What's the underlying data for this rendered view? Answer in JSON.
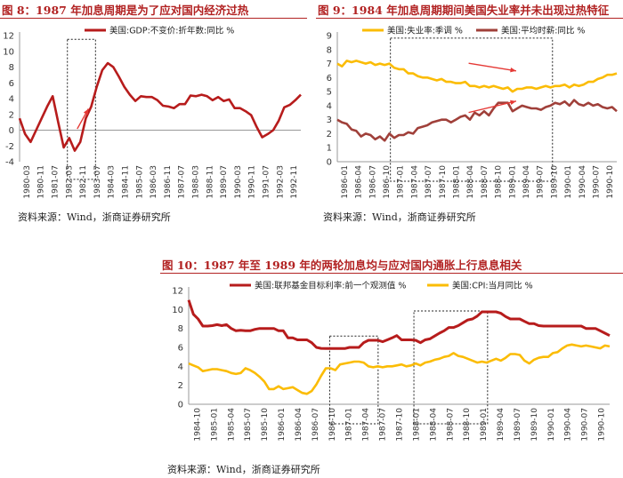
{
  "figures": [
    {
      "title": "图  8：1987 年加息周期是为了应对国内经济过热",
      "source": "资料来源：Wind，浙商证券研究所"
    },
    {
      "title": "图  9：1984 年加息周期期间美国失业率并未出现过热特征",
      "source": "资料来源：Wind，浙商证券研究所"
    },
    {
      "title": "图  10：1987 年至 1989 年的两轮加息均与应对国内通胀上行息息相关",
      "source": "资料来源：Wind，浙商证券研究所"
    }
  ],
  "colors": {
    "red": "#b71c1c",
    "yellow": "#fbbc05",
    "brown": "#a0403a",
    "arrow": "#e53935",
    "title": "#b22222"
  },
  "chart_data": [
    {
      "type": "line",
      "title": "图  8：1987 年加息周期是为了应对国内经济过热",
      "ylim": [
        -4,
        12
      ],
      "yticks": [
        -4,
        -2,
        0,
        2,
        4,
        6,
        8,
        10,
        12
      ],
      "xticks": [
        "1980-03",
        "1980-11",
        "1981-07",
        "1982-03",
        "1982-11",
        "1983-07",
        "1984-03",
        "1984-11",
        "1985-07",
        "1986-03",
        "1986-11",
        "1987-07",
        "1988-03",
        "1988-11",
        "1989-07",
        "1990-03",
        "1990-11",
        "1991-07",
        "1992-03",
        "1992-11"
      ],
      "series": [
        {
          "name": "美国:GDP:不变价:折年数:同比 %",
          "values": [
            1.5,
            -0.5,
            -1.5,
            0.0,
            1.5,
            3.0,
            4.3,
            1.0,
            -2.2,
            -1.0,
            -2.6,
            -1.5,
            1.5,
            3.0,
            5.5,
            7.6,
            8.5,
            8.0,
            6.8,
            5.5,
            4.5,
            3.7,
            4.3,
            4.2,
            4.2,
            3.8,
            3.1,
            3.0,
            2.8,
            3.3,
            3.3,
            4.4,
            4.3,
            4.5,
            4.3,
            3.8,
            4.2,
            3.7,
            3.9,
            2.8,
            2.8,
            2.4,
            1.9,
            0.4,
            -0.9,
            -0.5,
            0.0,
            1.2,
            2.9,
            3.2,
            3.8,
            4.5
          ]
        }
      ],
      "annotations": [
        "dashed box around 1982-11 to 1984-03",
        "upward arrow"
      ]
    },
    {
      "type": "line",
      "title": "图  9：1984 年加息周期期间美国失业率并未出现过热特征",
      "ylim": [
        0,
        9
      ],
      "yticks": [
        0,
        1,
        2,
        3,
        4,
        5,
        6,
        7,
        8,
        9
      ],
      "xticks": [
        "1986-01",
        "1986-04",
        "1986-07",
        "1986-10",
        "1987-01",
        "1987-04",
        "1987-07",
        "1987-10",
        "1988-01",
        "1988-04",
        "1988-07",
        "1988-10",
        "1989-01",
        "1989-04",
        "1989-07",
        "1989-10",
        "1990-01",
        "1990-04",
        "1990-07",
        "1990-10"
      ],
      "series": [
        {
          "name": "美国:失业率:季调 %",
          "values": [
            7.0,
            6.8,
            7.2,
            7.1,
            7.2,
            7.1,
            7.0,
            7.1,
            6.9,
            7.0,
            6.9,
            7.0,
            6.7,
            6.6,
            6.6,
            6.3,
            6.3,
            6.1,
            6.0,
            6.0,
            5.9,
            5.8,
            5.9,
            5.7,
            5.7,
            5.6,
            5.6,
            5.7,
            5.4,
            5.4,
            5.3,
            5.4,
            5.3,
            5.4,
            5.3,
            5.2,
            5.3,
            5.0,
            5.2,
            5.2,
            5.3,
            5.3,
            5.2,
            5.3,
            5.4,
            5.3,
            5.4,
            5.4,
            5.5,
            5.3,
            5.5,
            5.4,
            5.5,
            5.7,
            5.7,
            5.9,
            6.0,
            6.2,
            6.2,
            6.3
          ]
        },
        {
          "name": "美国:平均时薪:同比 %",
          "values": [
            3.0,
            2.8,
            2.7,
            2.3,
            2.2,
            1.8,
            2.0,
            1.9,
            1.6,
            1.8,
            1.5,
            2.0,
            1.7,
            1.9,
            1.9,
            2.1,
            2.0,
            2.4,
            2.5,
            2.6,
            2.8,
            2.9,
            3.0,
            3.0,
            2.8,
            3.0,
            3.2,
            3.3,
            3.0,
            3.5,
            3.3,
            3.6,
            3.3,
            3.8,
            4.2,
            4.2,
            4.2,
            3.6,
            3.8,
            4.0,
            3.9,
            3.8,
            3.8,
            3.7,
            3.9,
            4.0,
            4.2,
            4.1,
            4.3,
            4.0,
            4.4,
            4.1,
            4.0,
            4.2,
            4.0,
            4.1,
            3.9,
            3.8,
            3.9,
            3.6
          ]
        }
      ],
      "annotations": [
        "dashed box around 1987-03 to 1989-10",
        "two rightward arrows"
      ]
    },
    {
      "type": "line",
      "title": "图  10：1987 年至 1989 年的两轮加息均与应对国内通胀上行息息相关",
      "ylim": [
        0,
        12
      ],
      "yticks": [
        0,
        2,
        4,
        6,
        8,
        10,
        12
      ],
      "xticks": [
        "1984-10",
        "1985-01",
        "1985-04",
        "1985-07",
        "1985-10",
        "1986-01",
        "1986-04",
        "1986-07",
        "1986-10",
        "1987-01",
        "1987-04",
        "1987-07",
        "1987-10",
        "1988-01",
        "1988-04",
        "1988-07",
        "1988-10",
        "1989-01",
        "1989-04",
        "1989-07",
        "1989-10",
        "1990-01",
        "1990-04",
        "1990-07",
        "1990-10"
      ],
      "series": [
        {
          "name": "美国:联邦基金目标利率:前一个观测值 %",
          "values": [
            11.0,
            9.5,
            9.0,
            8.25,
            8.25,
            8.3,
            8.4,
            8.3,
            8.4,
            8.0,
            7.75,
            7.8,
            7.75,
            7.75,
            7.9,
            8.0,
            8.0,
            8.0,
            8.0,
            7.75,
            7.75,
            7.0,
            7.0,
            6.8,
            6.8,
            6.8,
            6.5,
            6.0,
            5.9,
            5.875,
            5.875,
            5.875,
            5.875,
            5.875,
            6.0,
            6.0,
            6.0,
            6.5,
            6.75,
            6.75,
            6.75,
            6.6,
            6.8,
            7.0,
            7.25,
            6.8,
            6.8,
            6.8,
            6.75,
            6.5,
            6.8,
            6.9,
            7.2,
            7.5,
            7.75,
            8.1,
            8.1,
            8.3,
            8.6,
            8.9,
            9.0,
            9.3,
            9.75,
            9.75,
            9.75,
            9.75,
            9.6,
            9.25,
            9.0,
            9.0,
            9.0,
            8.75,
            8.5,
            8.5,
            8.3,
            8.25,
            8.25,
            8.25,
            8.25,
            8.25,
            8.25,
            8.25,
            8.25,
            8.25,
            8.0,
            8.0,
            8.0,
            7.75,
            7.5,
            7.25
          ]
        },
        {
          "name": "美国:CPI:当月同比 %",
          "values": [
            4.3,
            4.1,
            3.9,
            3.5,
            3.6,
            3.7,
            3.7,
            3.6,
            3.5,
            3.3,
            3.2,
            3.3,
            3.8,
            3.6,
            3.3,
            2.9,
            2.4,
            1.6,
            1.6,
            1.9,
            1.6,
            1.7,
            1.8,
            1.5,
            1.2,
            1.1,
            1.4,
            2.1,
            3.0,
            3.8,
            3.8,
            3.6,
            4.2,
            4.3,
            4.4,
            4.5,
            4.5,
            4.4,
            4.0,
            3.9,
            4.0,
            3.9,
            4.0,
            4.0,
            4.1,
            4.2,
            4.0,
            4.1,
            4.3,
            4.1,
            4.4,
            4.5,
            4.7,
            4.8,
            5.0,
            5.1,
            5.4,
            5.1,
            5.0,
            4.8,
            4.6,
            4.4,
            4.5,
            4.4,
            4.6,
            4.8,
            4.6,
            4.9,
            5.3,
            5.3,
            5.2,
            4.6,
            4.3,
            4.7,
            4.9,
            5.0,
            5.0,
            5.4,
            5.5,
            5.9,
            6.2,
            6.3,
            6.2,
            6.1,
            6.2,
            6.1,
            6.0,
            5.9,
            6.2,
            6.1
          ]
        }
      ],
      "annotations": [
        "dashed box around 1986-11 to 1987-10",
        "dashed box around 1988-03 to 1989-04"
      ]
    }
  ]
}
